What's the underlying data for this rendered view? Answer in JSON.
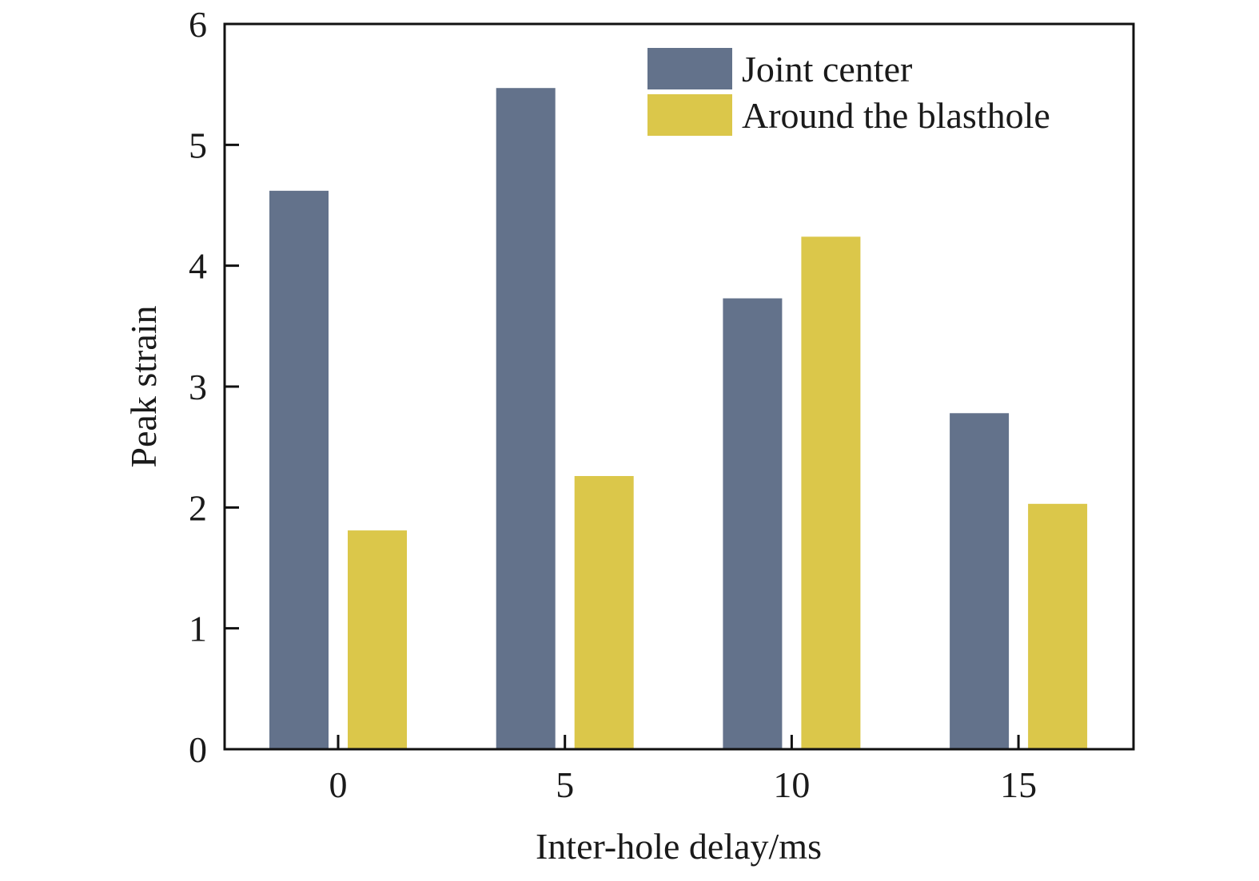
{
  "chart_data": {
    "type": "bar",
    "title": "",
    "xlabel": "Inter-hole delay/ms",
    "ylabel": "Peak strain",
    "categories": [
      "0",
      "5",
      "10",
      "15"
    ],
    "ylim": [
      0,
      6
    ],
    "yticks": [
      "0",
      "1",
      "2",
      "3",
      "4",
      "5",
      "6"
    ],
    "grid": false,
    "legend_position": "top-right",
    "series": [
      {
        "name": "Joint center",
        "color": "#63728b",
        "values": [
          4.62,
          5.47,
          3.73,
          2.78
        ]
      },
      {
        "name": "Around the blasthole",
        "color": "#dbc74a",
        "values": [
          1.81,
          2.26,
          4.24,
          2.03
        ]
      }
    ]
  }
}
